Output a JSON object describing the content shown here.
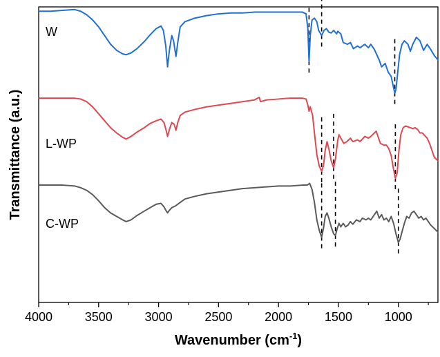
{
  "chart_data": {
    "type": "line",
    "xlabel": "Wavenumber (cm",
    "xlabel_sup": "-1",
    "xlabel_close": ")",
    "ylabel": "Transmittance (a.u.)",
    "xlim": [
      4000,
      670
    ],
    "x_reversed": true,
    "x_ticks": [
      4000,
      3500,
      3000,
      2500,
      2000,
      1500,
      1000
    ],
    "x_tick_labels": [
      "4000",
      "3500",
      "3000",
      "2500",
      "2000",
      "1500",
      "1000"
    ],
    "y_ticks_shown": false,
    "grid": false,
    "legend": "none",
    "series": [
      {
        "name": "W",
        "color": "#1f6fd6",
        "offset": 2.0,
        "points": [
          [
            4000,
            1.0
          ],
          [
            3900,
            1.0
          ],
          [
            3800,
            1.01
          ],
          [
            3700,
            1.02
          ],
          [
            3650,
            1.0
          ],
          [
            3600,
            0.96
          ],
          [
            3550,
            0.9
          ],
          [
            3500,
            0.82
          ],
          [
            3450,
            0.72
          ],
          [
            3400,
            0.62
          ],
          [
            3350,
            0.55
          ],
          [
            3300,
            0.51
          ],
          [
            3270,
            0.5
          ],
          [
            3230,
            0.52
          ],
          [
            3180,
            0.57
          ],
          [
            3120,
            0.65
          ],
          [
            3070,
            0.73
          ],
          [
            3020,
            0.8
          ],
          [
            2980,
            0.83
          ],
          [
            2960,
            0.78
          ],
          [
            2940,
            0.6
          ],
          [
            2925,
            0.36
          ],
          [
            2910,
            0.55
          ],
          [
            2890,
            0.72
          ],
          [
            2875,
            0.66
          ],
          [
            2855,
            0.48
          ],
          [
            2840,
            0.64
          ],
          [
            2820,
            0.82
          ],
          [
            2780,
            0.88
          ],
          [
            2700,
            0.92
          ],
          [
            2600,
            0.95
          ],
          [
            2500,
            0.97
          ],
          [
            2400,
            0.98
          ],
          [
            2300,
            0.98
          ],
          [
            2200,
            0.99
          ],
          [
            2100,
            0.99
          ],
          [
            2000,
            0.99
          ],
          [
            1900,
            0.99
          ],
          [
            1800,
            0.99
          ],
          [
            1770,
            0.97
          ],
          [
            1755,
            0.8
          ],
          [
            1745,
            0.42
          ],
          [
            1735,
            0.72
          ],
          [
            1720,
            0.9
          ],
          [
            1700,
            0.92
          ],
          [
            1680,
            0.88
          ],
          [
            1665,
            0.78
          ],
          [
            1640,
            0.72
          ],
          [
            1620,
            0.78
          ],
          [
            1600,
            0.8
          ],
          [
            1580,
            0.76
          ],
          [
            1560,
            0.75
          ],
          [
            1540,
            0.78
          ],
          [
            1515,
            0.74
          ],
          [
            1505,
            0.77
          ],
          [
            1480,
            0.74
          ],
          [
            1460,
            0.64
          ],
          [
            1425,
            0.62
          ],
          [
            1400,
            0.64
          ],
          [
            1375,
            0.57
          ],
          [
            1340,
            0.6
          ],
          [
            1320,
            0.58
          ],
          [
            1280,
            0.62
          ],
          [
            1250,
            0.58
          ],
          [
            1230,
            0.62
          ],
          [
            1200,
            0.56
          ],
          [
            1160,
            0.44
          ],
          [
            1140,
            0.36
          ],
          [
            1110,
            0.4
          ],
          [
            1085,
            0.3
          ],
          [
            1060,
            0.25
          ],
          [
            1040,
            0.12
          ],
          [
            1030,
            0.06
          ],
          [
            1020,
            0.1
          ],
          [
            1005,
            0.3
          ],
          [
            990,
            0.5
          ],
          [
            970,
            0.62
          ],
          [
            950,
            0.66
          ],
          [
            920,
            0.62
          ],
          [
            900,
            0.54
          ],
          [
            880,
            0.62
          ],
          [
            850,
            0.7
          ],
          [
            820,
            0.66
          ],
          [
            790,
            0.55
          ],
          [
            760,
            0.62
          ],
          [
            730,
            0.56
          ],
          [
            700,
            0.49
          ],
          [
            670,
            0.44
          ]
        ]
      },
      {
        "name": "L-WP",
        "color": "#e04850",
        "offset": 1.0,
        "points": [
          [
            4000,
            1.0
          ],
          [
            3900,
            1.0
          ],
          [
            3800,
            1.0
          ],
          [
            3700,
            1.0
          ],
          [
            3650,
            0.99
          ],
          [
            3600,
            0.96
          ],
          [
            3550,
            0.9
          ],
          [
            3500,
            0.82
          ],
          [
            3450,
            0.74
          ],
          [
            3400,
            0.66
          ],
          [
            3350,
            0.6
          ],
          [
            3300,
            0.55
          ],
          [
            3270,
            0.53
          ],
          [
            3230,
            0.56
          ],
          [
            3180,
            0.61
          ],
          [
            3120,
            0.66
          ],
          [
            3070,
            0.71
          ],
          [
            3020,
            0.74
          ],
          [
            2980,
            0.76
          ],
          [
            2955,
            0.72
          ],
          [
            2935,
            0.62
          ],
          [
            2925,
            0.56
          ],
          [
            2910,
            0.64
          ],
          [
            2890,
            0.72
          ],
          [
            2870,
            0.7
          ],
          [
            2855,
            0.63
          ],
          [
            2840,
            0.72
          ],
          [
            2820,
            0.8
          ],
          [
            2780,
            0.84
          ],
          [
            2700,
            0.87
          ],
          [
            2600,
            0.9
          ],
          [
            2500,
            0.92
          ],
          [
            2400,
            0.94
          ],
          [
            2300,
            0.96
          ],
          [
            2200,
            0.98
          ],
          [
            2160,
            1.01
          ],
          [
            2150,
            0.96
          ],
          [
            2100,
            0.98
          ],
          [
            2000,
            0.99
          ],
          [
            1900,
            1.0
          ],
          [
            1800,
            1.0
          ],
          [
            1770,
            0.99
          ],
          [
            1755,
            0.92
          ],
          [
            1745,
            0.85
          ],
          [
            1735,
            0.9
          ],
          [
            1715,
            0.8
          ],
          [
            1700,
            0.6
          ],
          [
            1680,
            0.35
          ],
          [
            1660,
            0.22
          ],
          [
            1640,
            0.16
          ],
          [
            1625,
            0.22
          ],
          [
            1610,
            0.4
          ],
          [
            1595,
            0.5
          ],
          [
            1580,
            0.42
          ],
          [
            1560,
            0.28
          ],
          [
            1540,
            0.2
          ],
          [
            1525,
            0.3
          ],
          [
            1505,
            0.52
          ],
          [
            1495,
            0.58
          ],
          [
            1480,
            0.54
          ],
          [
            1455,
            0.48
          ],
          [
            1430,
            0.5
          ],
          [
            1400,
            0.54
          ],
          [
            1380,
            0.5
          ],
          [
            1340,
            0.52
          ],
          [
            1320,
            0.5
          ],
          [
            1280,
            0.56
          ],
          [
            1250,
            0.54
          ],
          [
            1230,
            0.56
          ],
          [
            1200,
            0.6
          ],
          [
            1185,
            0.62
          ],
          [
            1170,
            0.56
          ],
          [
            1150,
            0.48
          ],
          [
            1120,
            0.46
          ],
          [
            1100,
            0.46
          ],
          [
            1080,
            0.42
          ],
          [
            1060,
            0.34
          ],
          [
            1040,
            0.18
          ],
          [
            1025,
            0.08
          ],
          [
            1010,
            0.14
          ],
          [
            995,
            0.4
          ],
          [
            980,
            0.58
          ],
          [
            960,
            0.66
          ],
          [
            940,
            0.68
          ],
          [
            900,
            0.66
          ],
          [
            880,
            0.65
          ],
          [
            860,
            0.66
          ],
          [
            840,
            0.64
          ],
          [
            820,
            0.6
          ],
          [
            800,
            0.6
          ],
          [
            780,
            0.57
          ],
          [
            760,
            0.54
          ],
          [
            740,
            0.48
          ],
          [
            720,
            0.4
          ],
          [
            700,
            0.32
          ],
          [
            670,
            0.28
          ]
        ]
      },
      {
        "name": "C-WP",
        "color": "#5a5a5a",
        "offset": 0.0,
        "points": [
          [
            4000,
            1.0
          ],
          [
            3900,
            1.0
          ],
          [
            3800,
            1.0
          ],
          [
            3700,
            0.99
          ],
          [
            3650,
            0.97
          ],
          [
            3600,
            0.94
          ],
          [
            3550,
            0.89
          ],
          [
            3500,
            0.82
          ],
          [
            3450,
            0.74
          ],
          [
            3400,
            0.68
          ],
          [
            3350,
            0.64
          ],
          [
            3300,
            0.6
          ],
          [
            3270,
            0.58
          ],
          [
            3230,
            0.6
          ],
          [
            3180,
            0.65
          ],
          [
            3120,
            0.7
          ],
          [
            3070,
            0.74
          ],
          [
            3020,
            0.78
          ],
          [
            2980,
            0.79
          ],
          [
            2955,
            0.75
          ],
          [
            2935,
            0.7
          ],
          [
            2925,
            0.68
          ],
          [
            2910,
            0.71
          ],
          [
            2890,
            0.74
          ],
          [
            2860,
            0.76
          ],
          [
            2820,
            0.8
          ],
          [
            2780,
            0.84
          ],
          [
            2700,
            0.87
          ],
          [
            2600,
            0.9
          ],
          [
            2500,
            0.92
          ],
          [
            2400,
            0.94
          ],
          [
            2300,
            0.96
          ],
          [
            2200,
            0.97
          ],
          [
            2100,
            0.98
          ],
          [
            2000,
            0.99
          ],
          [
            1900,
            0.99
          ],
          [
            1800,
            1.0
          ],
          [
            1760,
            1.0
          ],
          [
            1740,
            1.02
          ],
          [
            1720,
            0.95
          ],
          [
            1700,
            0.8
          ],
          [
            1680,
            0.6
          ],
          [
            1660,
            0.48
          ],
          [
            1640,
            0.4
          ],
          [
            1625,
            0.5
          ],
          [
            1610,
            0.64
          ],
          [
            1595,
            0.68
          ],
          [
            1580,
            0.62
          ],
          [
            1560,
            0.52
          ],
          [
            1540,
            0.44
          ],
          [
            1525,
            0.42
          ],
          [
            1510,
            0.5
          ],
          [
            1495,
            0.56
          ],
          [
            1480,
            0.52
          ],
          [
            1460,
            0.56
          ],
          [
            1440,
            0.52
          ],
          [
            1420,
            0.54
          ],
          [
            1400,
            0.58
          ],
          [
            1380,
            0.55
          ],
          [
            1350,
            0.6
          ],
          [
            1320,
            0.58
          ],
          [
            1300,
            0.62
          ],
          [
            1270,
            0.6
          ],
          [
            1250,
            0.62
          ],
          [
            1230,
            0.6
          ],
          [
            1200,
            0.66
          ],
          [
            1180,
            0.7
          ],
          [
            1160,
            0.62
          ],
          [
            1140,
            0.66
          ],
          [
            1120,
            0.6
          ],
          [
            1100,
            0.62
          ],
          [
            1080,
            0.58
          ],
          [
            1060,
            0.64
          ],
          [
            1040,
            0.56
          ],
          [
            1020,
            0.44
          ],
          [
            1000,
            0.34
          ],
          [
            985,
            0.38
          ],
          [
            970,
            0.46
          ],
          [
            950,
            0.56
          ],
          [
            930,
            0.64
          ],
          [
            910,
            0.62
          ],
          [
            890,
            0.68
          ],
          [
            870,
            0.7
          ],
          [
            850,
            0.66
          ],
          [
            830,
            0.62
          ],
          [
            810,
            0.64
          ],
          [
            790,
            0.6
          ],
          [
            770,
            0.62
          ],
          [
            750,
            0.58
          ],
          [
            730,
            0.54
          ],
          [
            700,
            0.5
          ],
          [
            670,
            0.46
          ]
        ]
      }
    ],
    "reference_lines": [
      {
        "series": "W",
        "x": 1745
      },
      {
        "series": "W",
        "x": 1640
      },
      {
        "series": "W",
        "x": 1030
      },
      {
        "series": "L-WP",
        "x": 1640
      },
      {
        "series": "L-WP",
        "x": 1540
      },
      {
        "series": "L-WP",
        "x": 1025
      },
      {
        "series": "C-WP",
        "x": 1640
      },
      {
        "series": "C-WP",
        "x": 1525
      },
      {
        "series": "C-WP",
        "x": 1000
      }
    ]
  }
}
